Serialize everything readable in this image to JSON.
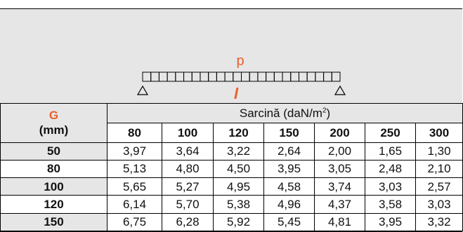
{
  "diagram": {
    "load_label": "p",
    "span_label": "l",
    "accent_color": "#e8602c"
  },
  "table": {
    "g_label": "G",
    "g_unit": "(mm)",
    "load_label": "Sarcină (daN/m",
    "load_exp": "2",
    "load_close": ")",
    "widths": [
      "80",
      "100",
      "120",
      "150",
      "200",
      "250",
      "300"
    ],
    "rows": [
      {
        "g": "50",
        "values": [
          "3,97",
          "3,64",
          "3,22",
          "2,64",
          "2,00",
          "1,65",
          "1,30"
        ]
      },
      {
        "g": "80",
        "values": [
          "5,13",
          "4,80",
          "4,50",
          "3,95",
          "3,05",
          "2,48",
          "2,10"
        ]
      },
      {
        "g": "100",
        "values": [
          "5,65",
          "5,27",
          "4,95",
          "4,58",
          "3,74",
          "3,03",
          "2,57"
        ]
      },
      {
        "g": "120",
        "values": [
          "6,14",
          "5,70",
          "5,38",
          "4,96",
          "4,37",
          "3,58",
          "3,03"
        ]
      },
      {
        "g": "150",
        "values": [
          "6,75",
          "6,28",
          "5,92",
          "5,45",
          "4,81",
          "3,95",
          "3,32"
        ]
      }
    ]
  }
}
